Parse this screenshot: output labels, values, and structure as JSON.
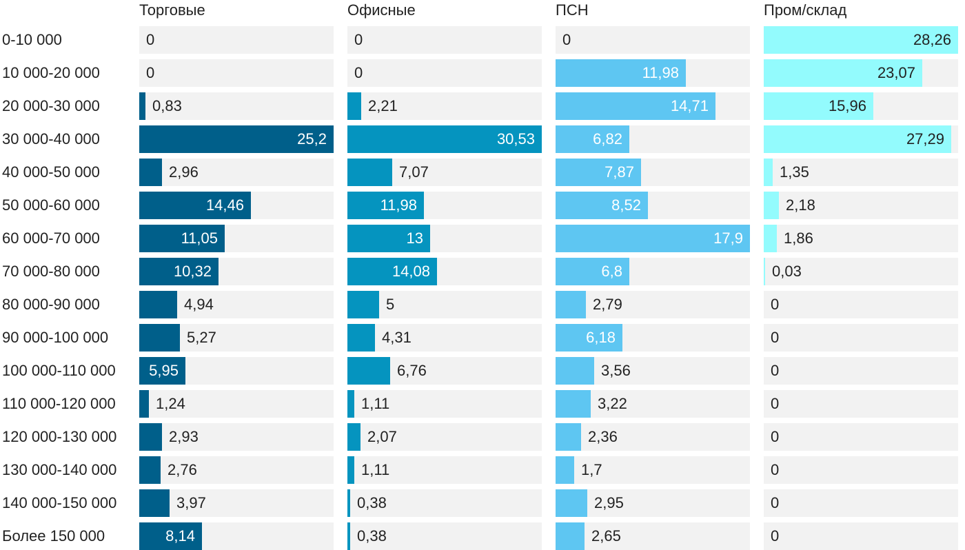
{
  "chart_data": {
    "type": "bar",
    "orientation": "horizontal",
    "layout": "small-multiples",
    "xlim": [
      0,
      30.53
    ],
    "categories": [
      "0-10 000",
      "10 000-20 000",
      "20 000-30 000",
      "30 000-40 000",
      "40 000-50 000",
      "50 000-60 000",
      "60 000-70 000",
      "70 000-80 000",
      "80 000-90 000",
      "90 000-100 000",
      "100 000-110 000",
      "110 000-120 000",
      "120 000-130 000",
      "130 000-140 000",
      "140 000-150 000",
      "Более 150 000"
    ],
    "series": [
      {
        "name": "Торговые",
        "color": "#005f8a",
        "xlim": [
          0,
          25.2
        ],
        "values": [
          0,
          0,
          0.83,
          25.2,
          2.96,
          14.46,
          11.05,
          10.32,
          4.94,
          5.27,
          5.95,
          1.24,
          2.93,
          2.76,
          3.97,
          8.14
        ],
        "labels": [
          "0",
          "0",
          "0,83",
          "25,2",
          "2,96",
          "14,46",
          "11,05",
          "10,32",
          "4,94",
          "5,27",
          "5,95",
          "1,24",
          "2,93",
          "2,76",
          "3,97",
          "8,14"
        ]
      },
      {
        "name": "Офисные",
        "color": "#0594bf",
        "xlim": [
          0,
          30.53
        ],
        "values": [
          0,
          0,
          2.21,
          30.53,
          7.07,
          11.98,
          13,
          14.08,
          5,
          4.31,
          6.76,
          1.11,
          2.07,
          1.11,
          0.38,
          0.38
        ],
        "labels": [
          "0",
          "0",
          "2,21",
          "30,53",
          "7,07",
          "11,98",
          "13",
          "14,08",
          "5",
          "4,31",
          "6,76",
          "1,11",
          "2,07",
          "1,11",
          "0,38",
          "0,38"
        ]
      },
      {
        "name": "ПСН",
        "color": "#5ec6f2",
        "xlim": [
          0,
          17.9
        ],
        "values": [
          0,
          11.98,
          14.71,
          6.82,
          7.87,
          8.52,
          17.9,
          6.8,
          2.79,
          6.18,
          3.56,
          3.22,
          2.36,
          1.7,
          2.95,
          2.65
        ],
        "labels": [
          "0",
          "11,98",
          "14,71",
          "6,82",
          "7,87",
          "8,52",
          "17,9",
          "6,8",
          "2,79",
          "6,18",
          "3,56",
          "3,22",
          "2,36",
          "1,7",
          "2,95",
          "2,65"
        ]
      },
      {
        "name": "Пром/склад",
        "color": "#93fbfd",
        "xlim": [
          0,
          28.26
        ],
        "values": [
          28.26,
          23.07,
          15.96,
          27.29,
          1.35,
          2.18,
          1.86,
          0.03,
          0,
          0,
          0,
          0,
          0,
          0,
          0,
          0
        ],
        "labels": [
          "28,26",
          "23,07",
          "15,96",
          "27,29",
          "1,35",
          "2,18",
          "1,86",
          "0,03",
          "0",
          "0",
          "0",
          "0",
          "0",
          "0",
          "0",
          "0"
        ]
      }
    ]
  }
}
